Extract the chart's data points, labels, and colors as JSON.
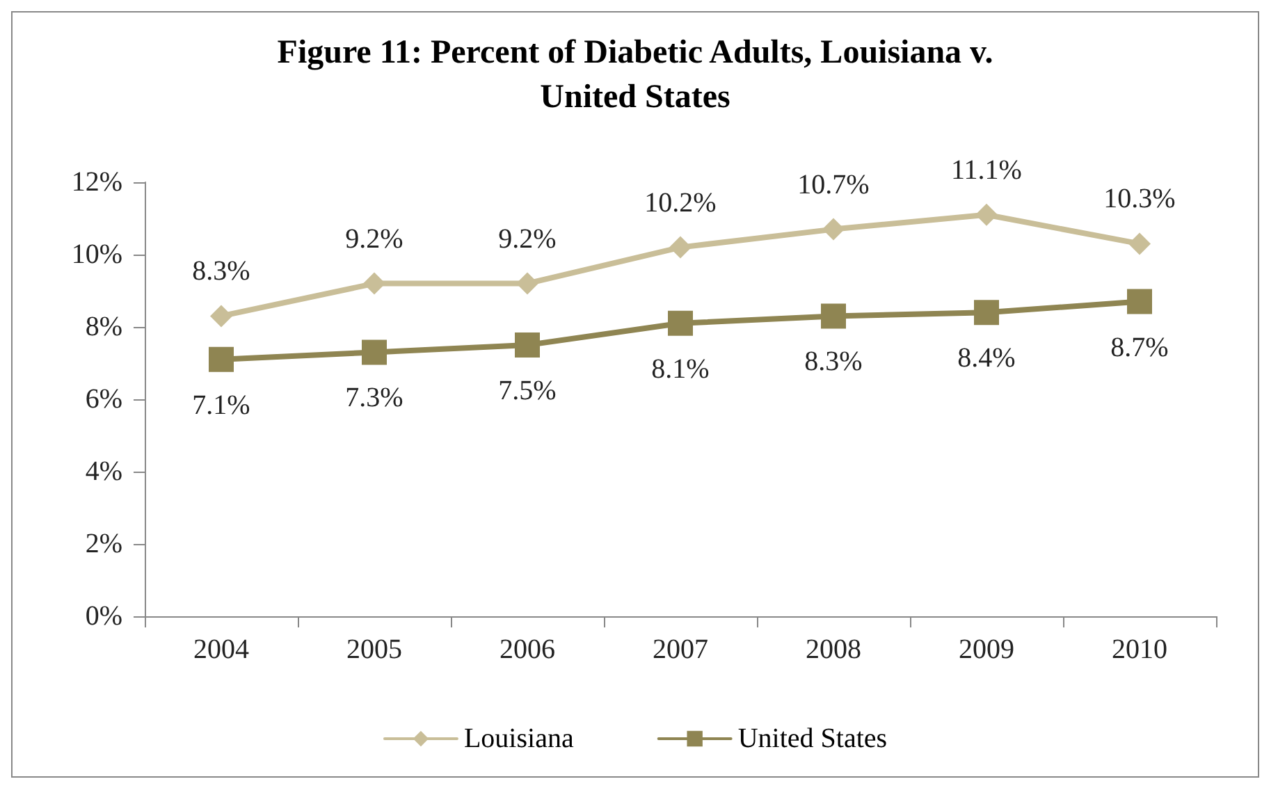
{
  "chart_data": {
    "type": "line",
    "title": "Figure 11: Percent of Diabetic Adults, Louisiana v.\nUnited States",
    "categories": [
      "2004",
      "2005",
      "2006",
      "2007",
      "2008",
      "2009",
      "2010"
    ],
    "series": [
      {
        "name": "Louisiana",
        "color": "#c9be98",
        "marker": "diamond",
        "values": [
          8.3,
          9.2,
          9.2,
          10.2,
          10.7,
          11.1,
          10.3
        ],
        "value_labels": [
          "8.3%",
          "9.2%",
          "9.2%",
          "10.2%",
          "10.7%",
          "11.1%",
          "10.3%"
        ]
      },
      {
        "name": "United States",
        "color": "#8f8552",
        "marker": "square",
        "values": [
          7.1,
          7.3,
          7.5,
          8.1,
          8.3,
          8.4,
          8.7
        ],
        "value_labels": [
          "7.1%",
          "7.3%",
          "7.5%",
          "8.1%",
          "8.3%",
          "8.4%",
          "8.7%"
        ]
      }
    ],
    "ylim": [
      0,
      12
    ],
    "yticks": [
      {
        "value": 0,
        "label": "0%"
      },
      {
        "value": 2,
        "label": "2%"
      },
      {
        "value": 4,
        "label": "4%"
      },
      {
        "value": 6,
        "label": "6%"
      },
      {
        "value": 8,
        "label": "8%"
      },
      {
        "value": 10,
        "label": "10%"
      },
      {
        "value": 12,
        "label": "12%"
      }
    ],
    "grid": false,
    "legend": "bottom"
  }
}
